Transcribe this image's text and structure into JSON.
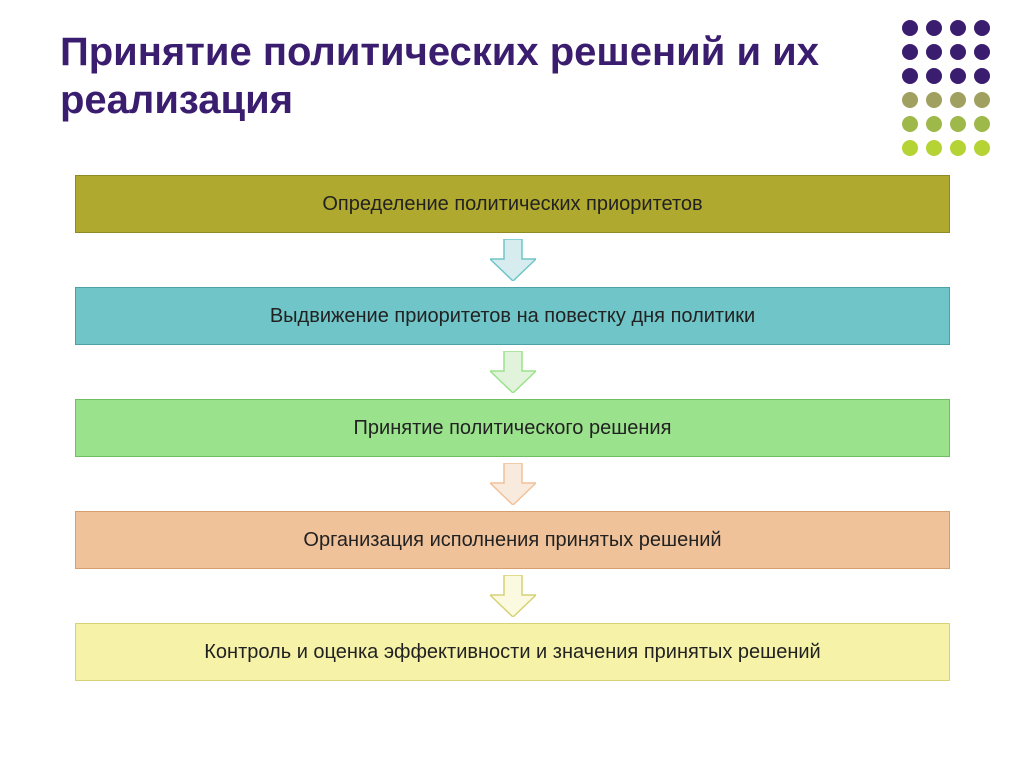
{
  "title": {
    "text": "Принятие политических решений и их реализация",
    "color": "#3a1d6e",
    "fontsize": 40
  },
  "dot_grid": {
    "cols": 4,
    "rows": 6,
    "dot_colors": [
      "#3a1d6e",
      "#3a1d6e",
      "#3a1d6e",
      "#3a1d6e",
      "#3a1d6e",
      "#3a1d6e",
      "#3a1d6e",
      "#3a1d6e",
      "#3a1d6e",
      "#3a1d6e",
      "#3a1d6e",
      "#3a1d6e",
      "#a0a060",
      "#a0a060",
      "#a0a060",
      "#a0a060",
      "#9fb84a",
      "#9fb84a",
      "#9fb84a",
      "#9fb84a",
      "#b5d334",
      "#b5d334",
      "#b5d334",
      "#b5d334"
    ]
  },
  "flow": {
    "steps": [
      {
        "label": "Определение политических приоритетов",
        "fill": "#b0a92f",
        "border": "#8f8a26",
        "text_color": "#222222"
      },
      {
        "label": "Выдвижение приоритетов на повестку дня политики",
        "fill": "#6fc5c7",
        "border": "#4aa2a4",
        "text_color": "#222222"
      },
      {
        "label": "Принятие политического решения",
        "fill": "#9be28c",
        "border": "#6fbf62",
        "text_color": "#222222"
      },
      {
        "label": "Организация исполнения принятых решений",
        "fill": "#f0c29a",
        "border": "#d79e6e",
        "text_color": "#222222"
      },
      {
        "label": "Контроль и оценка эффективности и значения принятых решений",
        "fill": "#f6f3a8",
        "border": "#d6d276",
        "text_color": "#222222"
      }
    ],
    "arrow_colors": [
      {
        "fill": "#d7ecee",
        "border": "#6fc5c7"
      },
      {
        "fill": "#e1f4db",
        "border": "#9be28c"
      },
      {
        "fill": "#f8eadd",
        "border": "#f0c29a"
      },
      {
        "fill": "#fbf9e0",
        "border": "#d6d276"
      }
    ],
    "box_fontsize": 20
  },
  "background_color": "#ffffff"
}
